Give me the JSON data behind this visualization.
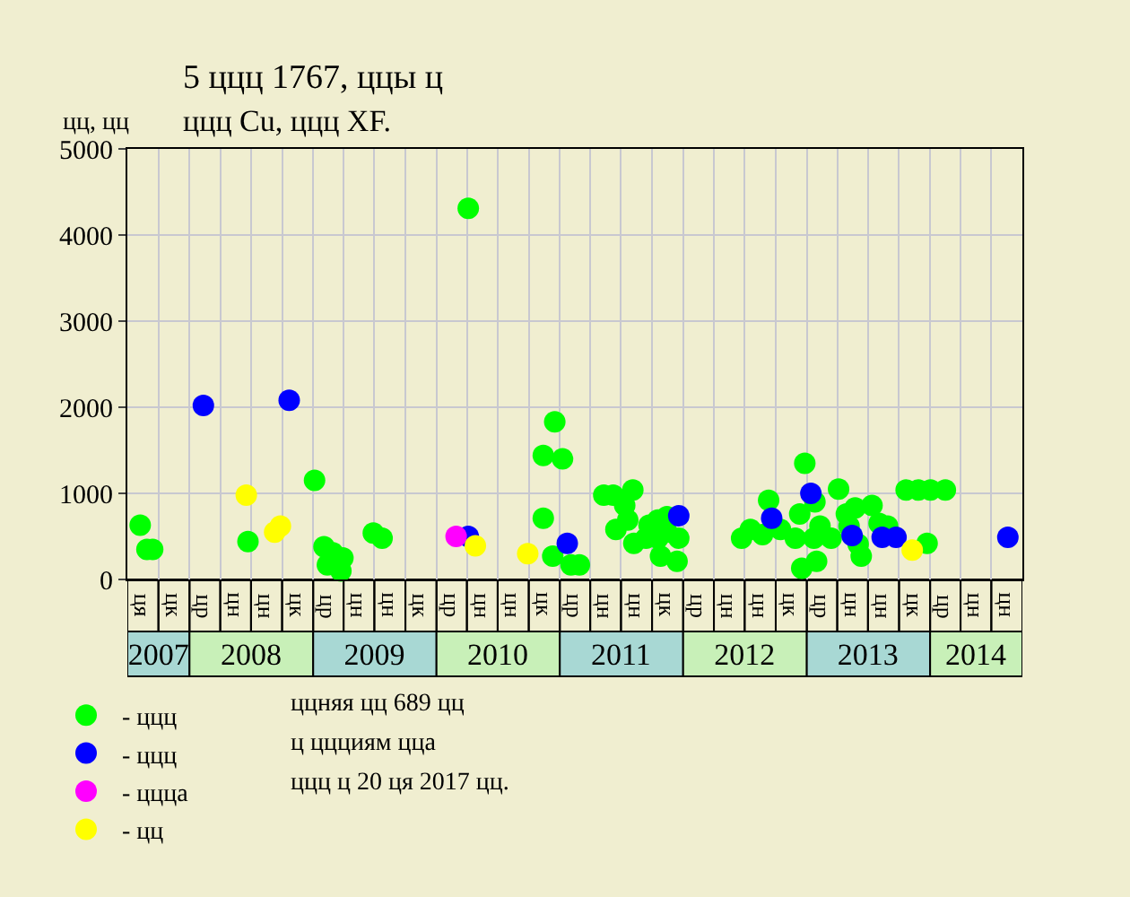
{
  "chart_data": {
    "type": "scatter",
    "title": "5 ццц 1767, ццы ц",
    "subtitle": "ццц Cu, ццц XF.",
    "ylabel": "цц, цц",
    "xlim": [
      "2007-07-01",
      "2014-10-01"
    ],
    "xticks": [
      {
        "value": "2007-10-01",
        "label": "2007"
      },
      {
        "value": "2008-07-01",
        "label": "2008"
      },
      {
        "value": "2009-07-01",
        "label": "2009"
      },
      {
        "value": "2010-07-01",
        "label": "2010"
      },
      {
        "value": "2011-07-01",
        "label": "2011"
      },
      {
        "value": "2012-07-01",
        "label": "2012"
      },
      {
        "value": "2013-07-01",
        "label": "2013"
      },
      {
        "value": "2014-05-16",
        "label": "2014"
      }
    ],
    "ylim": [
      0,
      5000
    ],
    "yticks": [
      0,
      1000,
      2000,
      3000,
      4000,
      5000
    ],
    "grid": true,
    "legend": "bottom left",
    "marker": "circle",
    "annotations": [
      "ця",
      "цк",
      "цр",
      "цн",
      "цн",
      "цк",
      "цр",
      "цн",
      "цн",
      "цк",
      "цр",
      "цн",
      "цн",
      "цк",
      "цр",
      "цн",
      "цн",
      "цк",
      "цр",
      "цн",
      "цн",
      "цк",
      "цр",
      "цн",
      "цн",
      "цк",
      "цр",
      "цн",
      "цн",
      "ццняя цц 689 цц",
      "ц ццциям цца",
      "ццц ц 20 ця 2017 цц."
    ],
    "series": [
      {
        "name": "- ццц",
        "color": "#00ff00",
        "x": [
          "2007-08-08",
          "2007-08-28",
          "2007-09-14",
          "2008-06-22",
          "2009-01-05",
          "2009-02-02",
          "2009-02-28",
          "2009-02-12",
          "2009-03-24",
          "2009-03-30",
          "2009-06-28",
          "2009-07-24",
          "2010-04-05",
          "2010-11-13",
          "2010-11-13",
          "2010-12-11",
          "2010-12-17",
          "2011-01-09",
          "2011-02-03",
          "2011-02-28",
          "2011-05-11",
          "2011-06-08",
          "2011-08-05",
          "2011-07-12",
          "2011-06-16",
          "2011-07-21",
          "2011-08-08",
          "2011-09-22",
          "2011-10-18",
          "2011-11-14",
          "2011-09-13",
          "2011-10-18",
          "2011-11-14",
          "2011-12-19",
          "2011-10-26",
          "2011-12-14",
          "2012-06-22",
          "2012-07-18",
          "2012-08-23",
          "2012-09-10",
          "2012-10-15",
          "2012-11-28",
          "2012-12-11",
          "2012-12-26",
          "2012-12-17",
          "2013-01-30",
          "2013-01-25",
          "2013-02-09",
          "2013-01-22",
          "2013-03-14",
          "2013-04-05",
          "2013-04-28",
          "2013-05-24",
          "2013-05-06",
          "2013-06-11",
          "2013-06-02",
          "2013-07-13",
          "2013-08-03",
          "2013-08-28",
          "2013-12-23",
          "2013-10-22",
          "2013-11-27",
          "2014-01-02",
          "2014-02-15"
        ],
        "values": [
          630,
          350,
          350,
          440,
          1150,
          380,
          310,
          170,
          100,
          250,
          540,
          480,
          4310,
          1440,
          710,
          270,
          1830,
          1400,
          170,
          170,
          980,
          980,
          1040,
          860,
          580,
          690,
          420,
          630,
          690,
          730,
          480,
          480,
          550,
          480,
          270,
          210,
          480,
          580,
          520,
          920,
          580,
          480,
          760,
          1350,
          130,
          210,
          900,
          620,
          480,
          480,
          1050,
          760,
          830,
          620,
          270,
          410,
          860,
          650,
          620,
          420,
          1040,
          1040,
          1040,
          1040
        ]
      },
      {
        "name": "- ццц",
        "color": "#0000ff",
        "x": [
          "2008-02-11",
          "2008-10-22",
          "2010-04-05",
          "2011-01-23",
          "2011-12-19",
          "2012-09-19",
          "2013-01-13",
          "2013-05-15",
          "2013-08-12",
          "2013-09-22",
          "2014-08-19"
        ],
        "values": [
          2020,
          2080,
          500,
          420,
          740,
          710,
          1000,
          510,
          490,
          490,
          490
        ]
      },
      {
        "name": "- цццa",
        "color": "#ff00ff",
        "x": [
          "2010-02-28"
        ],
        "values": [
          500
        ]
      },
      {
        "name": "- цц",
        "color": "#ffff00",
        "x": [
          "2008-06-17",
          "2008-09-09",
          "2008-09-26",
          "2010-04-26",
          "2010-09-28",
          "2013-11-09"
        ],
        "values": [
          980,
          550,
          620,
          390,
          300,
          340
        ]
      }
    ]
  }
}
